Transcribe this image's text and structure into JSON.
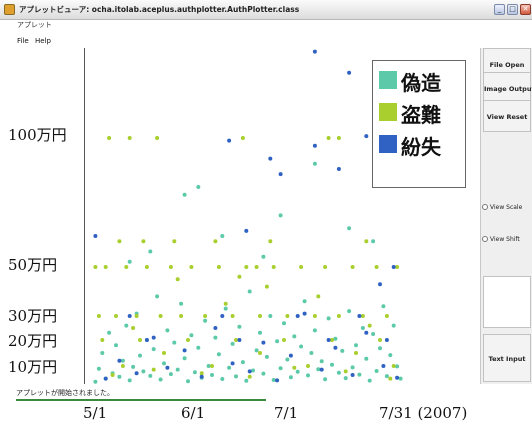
{
  "window": {
    "title": "アプレットビューア: ocha.itolab.aceplus.authplotter.AuthPlotter.class",
    "subtitle": "アプレット",
    "min_btn": "_",
    "max_btn": "□",
    "close_btn": "✕"
  },
  "menu": {
    "file": "File",
    "help": "Help"
  },
  "sidebar": {
    "file_open": "File Open",
    "image_output": "Image Output",
    "view_reset": "View Reset",
    "view_scale": "View Scale",
    "view_shift": "View Shift",
    "text_input": "Text Input"
  },
  "status": {
    "text": "アプレットが開始されました。"
  },
  "colors": {
    "forgery": "#5cc9a8",
    "theft": "#a9cf2e",
    "loss": "#2f62c2"
  },
  "chart_data": {
    "type": "scatter",
    "title": "",
    "xlabel": "",
    "ylabel": "",
    "y_tick_labels": [
      "100万円",
      "50万円",
      "30万円",
      "20万円",
      "10万円"
    ],
    "y_ticks": [
      1000000,
      500000,
      300000,
      200000,
      100000
    ],
    "x_tick_labels": [
      "5/1",
      "6/1",
      "7/1",
      "7/31 (2007)"
    ],
    "x_ticks": [
      "2007-05-01",
      "2007-06-01",
      "2007-07-01",
      "2007-07-31"
    ],
    "legend": [
      "偽造",
      "盗難",
      "紛失"
    ],
    "legend_placement": "top-right",
    "series": [
      {
        "name": "偽造",
        "color": "#5cc9a8",
        "points": [
          [
            "2007-05-02",
            12000
          ],
          [
            "2007-05-03",
            85000
          ],
          [
            "2007-05-04",
            150000
          ],
          [
            "2007-05-05",
            30000
          ],
          [
            "2007-05-06",
            230000
          ],
          [
            "2007-05-07",
            60000
          ],
          [
            "2007-05-08",
            180000
          ],
          [
            "2007-05-09",
            40000
          ],
          [
            "2007-05-10",
            120000
          ],
          [
            "2007-05-11",
            260000
          ],
          [
            "2007-05-12",
            20000
          ],
          [
            "2007-05-13",
            95000
          ],
          [
            "2007-05-14",
            310000
          ],
          [
            "2007-05-15",
            140000
          ],
          [
            "2007-05-16",
            70000
          ],
          [
            "2007-05-17",
            200000
          ],
          [
            "2007-05-18",
            45000
          ],
          [
            "2007-05-19",
            165000
          ],
          [
            "2007-05-20",
            380000
          ],
          [
            "2007-05-21",
            25000
          ],
          [
            "2007-05-22",
            110000
          ],
          [
            "2007-05-23",
            240000
          ],
          [
            "2007-05-24",
            55000
          ],
          [
            "2007-05-25",
            190000
          ],
          [
            "2007-05-26",
            80000
          ],
          [
            "2007-05-27",
            350000
          ],
          [
            "2007-05-28",
            130000
          ],
          [
            "2007-05-29",
            15000
          ],
          [
            "2007-05-30",
            220000
          ],
          [
            "2007-05-31",
            65000
          ],
          [
            "2007-06-01",
            170000
          ],
          [
            "2007-06-02",
            35000
          ],
          [
            "2007-06-03",
            280000
          ],
          [
            "2007-06-04",
            100000
          ],
          [
            "2007-06-05",
            50000
          ],
          [
            "2007-06-06",
            210000
          ],
          [
            "2007-06-07",
            145000
          ],
          [
            "2007-06-08",
            28000
          ],
          [
            "2007-06-09",
            330000
          ],
          [
            "2007-06-10",
            90000
          ],
          [
            "2007-06-11",
            185000
          ],
          [
            "2007-06-12",
            42000
          ],
          [
            "2007-06-13",
            255000
          ],
          [
            "2007-06-14",
            115000
          ],
          [
            "2007-06-15",
            18000
          ],
          [
            "2007-06-16",
            400000
          ],
          [
            "2007-06-17",
            75000
          ],
          [
            "2007-06-18",
            160000
          ],
          [
            "2007-06-19",
            230000
          ],
          [
            "2007-06-20",
            58000
          ],
          [
            "2007-06-21",
            135000
          ],
          [
            "2007-06-22",
            300000
          ],
          [
            "2007-06-23",
            22000
          ],
          [
            "2007-06-24",
            195000
          ],
          [
            "2007-06-25",
            88000
          ],
          [
            "2007-06-26",
            270000
          ],
          [
            "2007-06-27",
            125000
          ],
          [
            "2007-06-28",
            38000
          ],
          [
            "2007-06-29",
            215000
          ],
          [
            "2007-06-30",
            68000
          ],
          [
            "2007-07-01",
            175000
          ],
          [
            "2007-07-02",
            360000
          ],
          [
            "2007-07-03",
            48000
          ],
          [
            "2007-07-04",
            150000
          ],
          [
            "2007-07-05",
            240000
          ],
          [
            "2007-07-06",
            82000
          ],
          [
            "2007-07-07",
            118000
          ],
          [
            "2007-07-08",
            26000
          ],
          [
            "2007-07-09",
            290000
          ],
          [
            "2007-07-10",
            105000
          ],
          [
            "2007-07-11",
            205000
          ],
          [
            "2007-07-12",
            62000
          ],
          [
            "2007-07-13",
            158000
          ],
          [
            "2007-07-14",
            33000
          ],
          [
            "2007-07-15",
            320000
          ],
          [
            "2007-07-16",
            92000
          ],
          [
            "2007-07-17",
            180000
          ],
          [
            "2007-07-18",
            52000
          ],
          [
            "2007-07-19",
            250000
          ],
          [
            "2007-07-20",
            128000
          ],
          [
            "2007-07-21",
            19000
          ],
          [
            "2007-07-22",
            225000
          ],
          [
            "2007-07-23",
            72000
          ],
          [
            "2007-07-24",
            168000
          ],
          [
            "2007-07-25",
            340000
          ],
          [
            "2007-07-26",
            44000
          ],
          [
            "2007-07-27",
            142000
          ],
          [
            "2007-07-28",
            260000
          ],
          [
            "2007-07-29",
            98000
          ],
          [
            "2007-07-30",
            30000
          ],
          [
            "2007-05-18",
            560000
          ],
          [
            "2007-06-08",
            620000
          ],
          [
            "2007-06-25",
            700000
          ],
          [
            "2007-07-05",
            900000
          ],
          [
            "2007-05-28",
            780000
          ],
          [
            "2007-06-20",
            540000
          ],
          [
            "2007-07-15",
            650000
          ],
          [
            "2007-06-01",
            810000
          ],
          [
            "2007-07-22",
            600000
          ],
          [
            "2007-05-12",
            520000
          ]
        ]
      },
      {
        "name": "盗難",
        "color": "#a9cf2e",
        "points": [
          [
            "2007-05-02",
            500000
          ],
          [
            "2007-05-06",
            1000000
          ],
          [
            "2007-05-09",
            600000
          ],
          [
            "2007-05-12",
            1000000
          ],
          [
            "2007-05-16",
            600000
          ],
          [
            "2007-05-20",
            1000000
          ],
          [
            "2007-05-25",
            600000
          ],
          [
            "2007-06-06",
            600000
          ],
          [
            "2007-06-14",
            1000000
          ],
          [
            "2007-06-18",
            500000
          ],
          [
            "2007-06-22",
            600000
          ],
          [
            "2007-07-09",
            1000000
          ],
          [
            "2007-07-12",
            1000000
          ],
          [
            "2007-07-20",
            600000
          ],
          [
            "2007-05-03",
            300000
          ],
          [
            "2007-05-05",
            500000
          ],
          [
            "2007-05-08",
            300000
          ],
          [
            "2007-05-11",
            500000
          ],
          [
            "2007-05-14",
            300000
          ],
          [
            "2007-05-17",
            500000
          ],
          [
            "2007-05-21",
            300000
          ],
          [
            "2007-05-24",
            500000
          ],
          [
            "2007-05-27",
            300000
          ],
          [
            "2007-05-30",
            500000
          ],
          [
            "2007-06-03",
            300000
          ],
          [
            "2007-06-07",
            500000
          ],
          [
            "2007-06-11",
            300000
          ],
          [
            "2007-06-15",
            500000
          ],
          [
            "2007-06-19",
            300000
          ],
          [
            "2007-06-23",
            500000
          ],
          [
            "2007-06-27",
            300000
          ],
          [
            "2007-07-01",
            500000
          ],
          [
            "2007-07-05",
            300000
          ],
          [
            "2007-07-08",
            500000
          ],
          [
            "2007-07-12",
            300000
          ],
          [
            "2007-07-16",
            500000
          ],
          [
            "2007-07-19",
            300000
          ],
          [
            "2007-07-23",
            500000
          ],
          [
            "2007-07-26",
            300000
          ],
          [
            "2007-07-29",
            500000
          ],
          [
            "2007-05-04",
            200000
          ],
          [
            "2007-05-10",
            100000
          ],
          [
            "2007-05-15",
            200000
          ],
          [
            "2007-05-22",
            150000
          ],
          [
            "2007-05-29",
            200000
          ],
          [
            "2007-06-05",
            100000
          ],
          [
            "2007-06-12",
            200000
          ],
          [
            "2007-06-19",
            150000
          ],
          [
            "2007-06-26",
            200000
          ],
          [
            "2007-07-03",
            100000
          ],
          [
            "2007-07-10",
            200000
          ],
          [
            "2007-07-17",
            150000
          ],
          [
            "2007-07-24",
            200000
          ],
          [
            "2007-07-28",
            100000
          ],
          [
            "2007-05-07",
            50000
          ],
          [
            "2007-05-19",
            80000
          ],
          [
            "2007-06-02",
            60000
          ],
          [
            "2007-06-16",
            40000
          ],
          [
            "2007-06-29",
            90000
          ],
          [
            "2007-07-14",
            70000
          ],
          [
            "2007-07-27",
            30000
          ],
          [
            "2007-05-13",
            250000
          ],
          [
            "2007-06-09",
            350000
          ],
          [
            "2007-06-21",
            420000
          ],
          [
            "2007-07-06",
            380000
          ],
          [
            "2007-07-21",
            260000
          ],
          [
            "2007-05-26",
            450000
          ],
          [
            "2007-06-13",
            460000
          ]
        ]
      },
      {
        "name": "紛失",
        "color": "#2f62c2",
        "points": [
          [
            "2007-07-05",
            1450000
          ],
          [
            "2007-07-15",
            1340000
          ],
          [
            "2007-06-10",
            990000
          ],
          [
            "2007-06-22",
            920000
          ],
          [
            "2007-07-20",
            1010000
          ],
          [
            "2007-07-05",
            970000
          ],
          [
            "2007-07-12",
            880000
          ],
          [
            "2007-06-25",
            860000
          ],
          [
            "2007-05-02",
            620000
          ],
          [
            "2007-06-15",
            640000
          ],
          [
            "2007-07-28",
            500000
          ],
          [
            "2007-07-24",
            430000
          ],
          [
            "2007-05-05",
            30000
          ],
          [
            "2007-05-09",
            120000
          ],
          [
            "2007-05-14",
            60000
          ],
          [
            "2007-05-19",
            210000
          ],
          [
            "2007-05-23",
            90000
          ],
          [
            "2007-05-28",
            160000
          ],
          [
            "2007-06-02",
            40000
          ],
          [
            "2007-06-06",
            250000
          ],
          [
            "2007-06-11",
            110000
          ],
          [
            "2007-06-16",
            70000
          ],
          [
            "2007-06-20",
            190000
          ],
          [
            "2007-06-24",
            20000
          ],
          [
            "2007-06-28",
            140000
          ],
          [
            "2007-07-02",
            310000
          ],
          [
            "2007-07-07",
            80000
          ],
          [
            "2007-07-11",
            170000
          ],
          [
            "2007-07-16",
            50000
          ],
          [
            "2007-07-20",
            230000
          ],
          [
            "2007-07-25",
            100000
          ],
          [
            "2007-07-29",
            35000
          ],
          [
            "2007-05-12",
            300000
          ],
          [
            "2007-06-08",
            300000
          ],
          [
            "2007-06-30",
            300000
          ],
          [
            "2007-07-18",
            300000
          ],
          [
            "2007-05-17",
            200000
          ],
          [
            "2007-06-13",
            200000
          ],
          [
            "2007-07-09",
            200000
          ],
          [
            "2007-07-26",
            200000
          ]
        ]
      }
    ]
  }
}
